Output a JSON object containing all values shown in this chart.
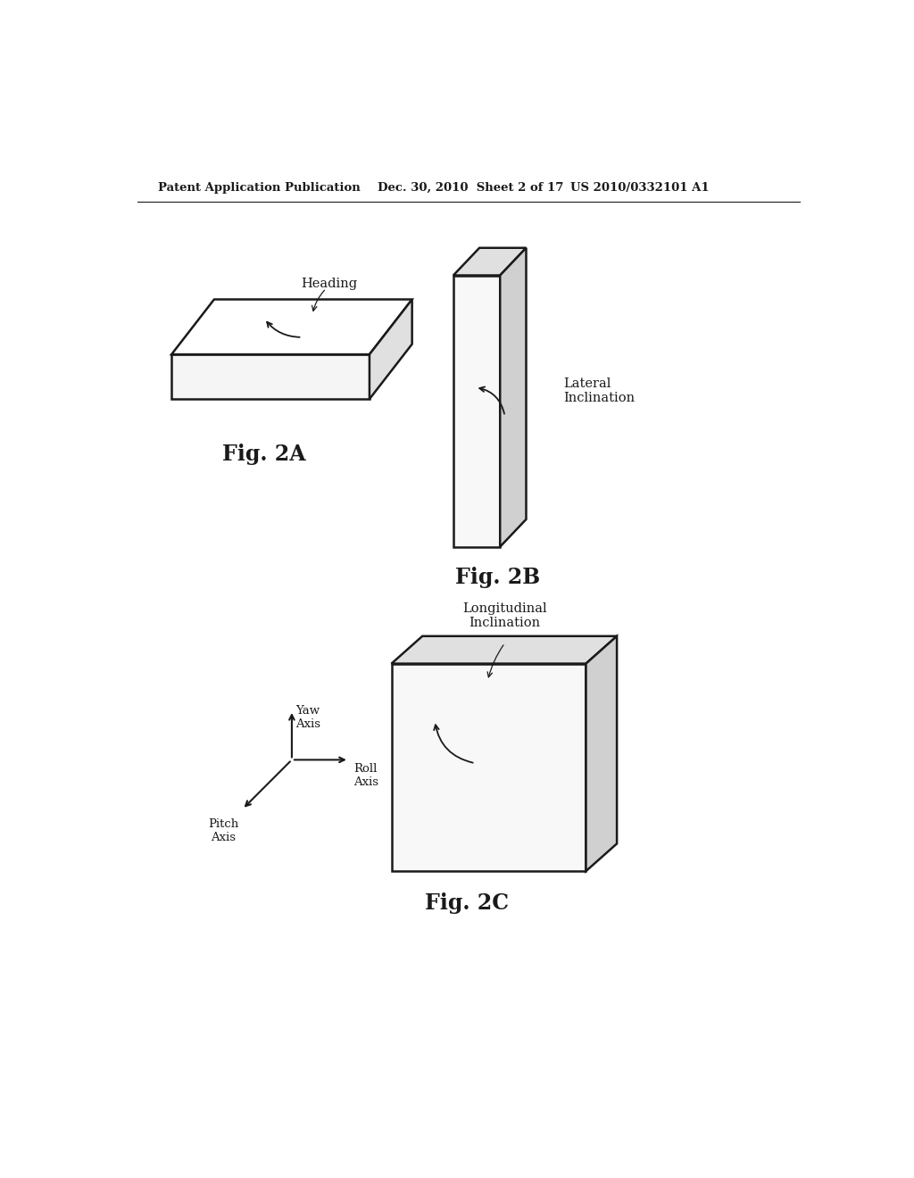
{
  "bg_color": "#ffffff",
  "header_left": "Patent Application Publication",
  "header_mid": "Dec. 30, 2010  Sheet 2 of 17",
  "header_right": "US 2010/0332101 A1",
  "heading_label": "Heading",
  "lateral_label": "Lateral\nInclination",
  "longitudinal_label": "Longitudinal\nInclination",
  "yaw_label": "Yaw\nAxis",
  "roll_label": "Roll\nAxis",
  "pitch_label": "Pitch\nAxis",
  "fig2a_label": "Fig. 2A",
  "fig2b_label": "Fig. 2B",
  "fig2c_label": "Fig. 2C",
  "line_color": "#1a1a1a",
  "line_width": 1.8
}
